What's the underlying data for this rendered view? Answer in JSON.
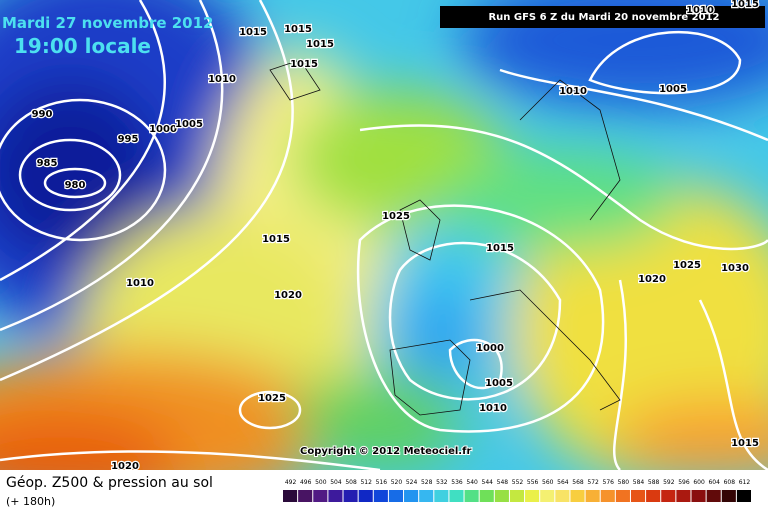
{
  "header": {
    "date": "Mardi 27 novembre 2012",
    "time": "19:00 locale",
    "run": "Run GFS 6 Z du Mardi 20 novembre 2012"
  },
  "isobar_labels": [
    1015,
    1015,
    1015,
    1015,
    1010,
    990,
    995,
    1000,
    1005,
    985,
    980,
    1025,
    1015,
    1015,
    1010,
    1020,
    1010,
    1005,
    1020,
    1025,
    1030,
    1000,
    1005,
    1010,
    1025,
    1015,
    1020,
    1010,
    1015
  ],
  "copyright": "Copyright © 2012 Meteociel.fr",
  "footer": {
    "title": "Géop. Z500 & pression au sol",
    "subtitle": "(+ 180h)"
  },
  "scale": {
    "labels": [
      492,
      496,
      500,
      504,
      508,
      512,
      516,
      520,
      524,
      528,
      532,
      536,
      540,
      544,
      548,
      552,
      556,
      560,
      564,
      568,
      572,
      576,
      580,
      584,
      588,
      592,
      596,
      600,
      604,
      608,
      612
    ]
  }
}
